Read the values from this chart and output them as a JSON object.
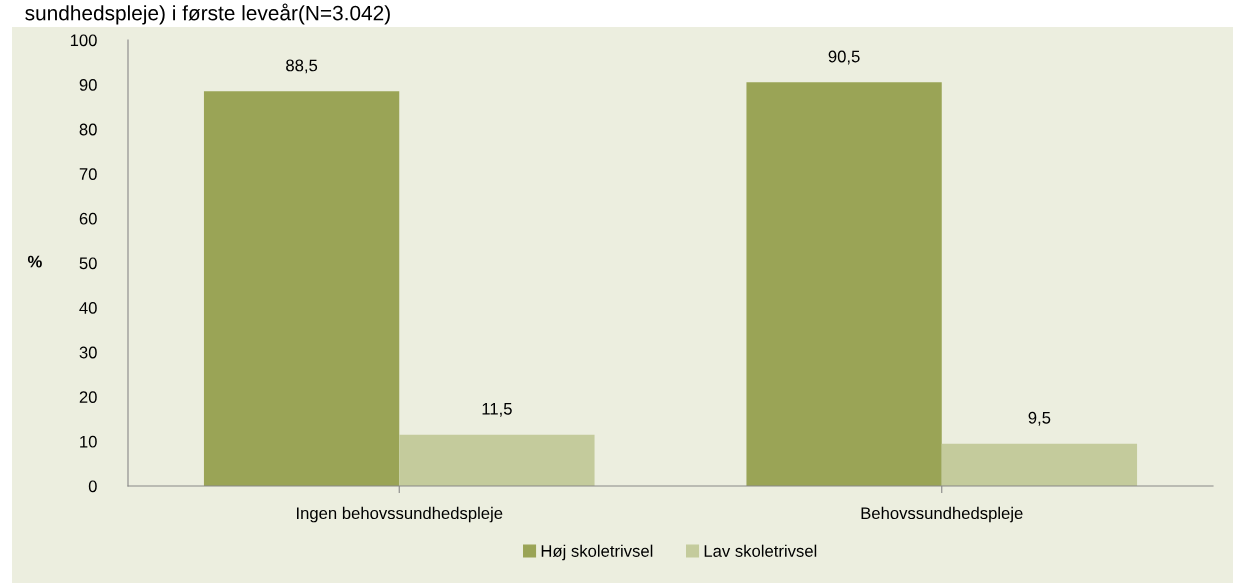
{
  "chart_data": {
    "type": "bar",
    "title": "sundhedspleje) i første leveår(N=3.042)",
    "ylabel": "%",
    "categories": [
      "Ingen behovssundhedspleje",
      "Behovssundhedspleje"
    ],
    "series": [
      {
        "name": "Høj skoletrivsel",
        "color": "#9aa456",
        "values": [
          88.5,
          90.5
        ],
        "value_labels": [
          "88,5",
          "90,5"
        ]
      },
      {
        "name": "Lav skoletrivsel",
        "color": "#c4cb9c",
        "values": [
          11.5,
          9.5
        ],
        "value_labels": [
          "11,5",
          "9,5"
        ]
      }
    ],
    "ylim": [
      0,
      100
    ],
    "yticks": [
      0,
      10,
      20,
      30,
      40,
      50,
      60,
      70,
      80,
      90,
      100
    ],
    "grid": false,
    "legend": "bottom"
  }
}
